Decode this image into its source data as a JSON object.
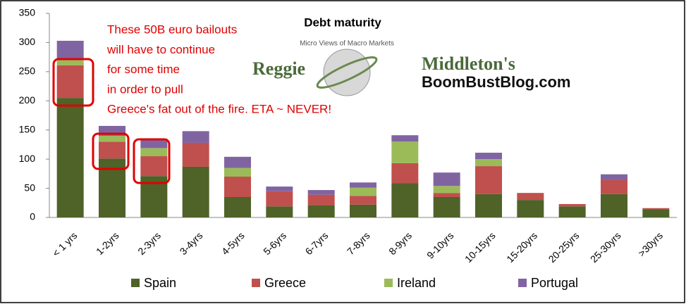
{
  "chart_data": {
    "type": "stacked-bar",
    "title": "Debt maturity",
    "categories": [
      "< 1 yrs",
      "1-2yrs",
      "2-3yrs",
      "3-4yrs",
      "4-5yrs",
      "5-6yrs",
      "6-7yrs",
      "7-8yrs",
      "8-9yrs",
      "9-10yrs",
      "10-15yrs",
      "15-20yrs",
      "20-25yrs",
      "25-30yrs",
      ">30yrs"
    ],
    "series": [
      {
        "name": "Spain",
        "color": "#4f6228",
        "values": [
          205,
          101,
          71,
          87,
          35,
          19,
          21,
          22,
          59,
          35,
          40,
          30,
          19,
          40,
          14
        ]
      },
      {
        "name": "Greece",
        "color": "#c0504d",
        "values": [
          56,
          29,
          34,
          41,
          35,
          26,
          18,
          15,
          34,
          7,
          48,
          12,
          4,
          24,
          2
        ]
      },
      {
        "name": "Ireland",
        "color": "#9bbb59",
        "values": [
          11,
          10,
          14,
          0,
          15,
          0,
          0,
          14,
          37,
          12,
          12,
          0,
          0,
          0,
          0
        ]
      },
      {
        "name": "Portugal",
        "color": "#8064a2",
        "values": [
          31,
          17,
          16,
          20,
          19,
          8,
          8,
          9,
          11,
          23,
          11,
          0,
          0,
          10,
          0
        ]
      }
    ],
    "ylim": [
      0,
      350
    ],
    "yticks": [
      0,
      50,
      100,
      150,
      200,
      250,
      300,
      350
    ],
    "grid": false,
    "legend": "bottom",
    "annotation_lines": [
      "These 50B euro bailouts",
      "will have to continue",
      "for some time",
      "in order to pull",
      "Greece's fat out of the fire. ETA ~ NEVER!"
    ],
    "watermark": {
      "left": "Reggie",
      "arc": "Micro Views of Macro Markets",
      "right": "Middleton's",
      "site": "BoomBustBlog.com"
    }
  }
}
